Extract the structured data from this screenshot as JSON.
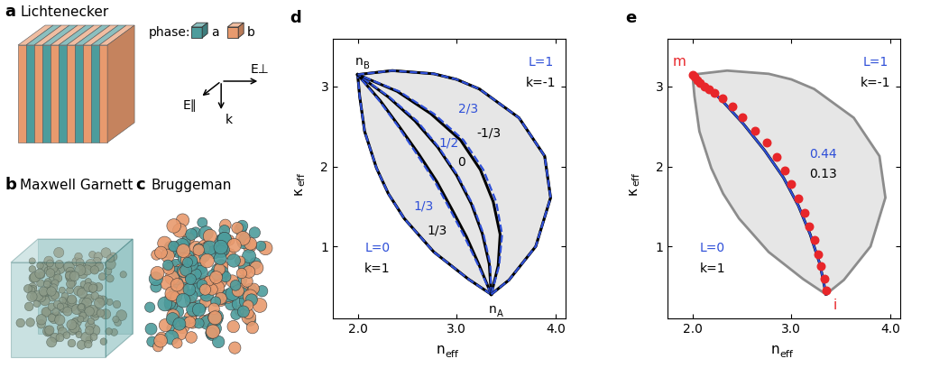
{
  "diagrams": {
    "a": {
      "label": "a",
      "title": "Lichtenecker",
      "legend": {
        "title": "phase:",
        "items": [
          {
            "label": "a",
            "color": "#4d9c9c"
          },
          {
            "label": "b",
            "color": "#e89a6e"
          }
        ]
      },
      "vectors": [
        "E∥",
        "E⊥",
        "k"
      ]
    },
    "b": {
      "label": "b",
      "title": "Maxwell Garnett"
    },
    "c": {
      "label": "c",
      "title": "Bruggeman"
    }
  },
  "chart_data": [
    {
      "type": "line",
      "panel": "d",
      "xlabel": {
        "text": "n",
        "subscript": "eff"
      },
      "ylabel": {
        "text": "κ",
        "subscript": "eff"
      },
      "xlim": [
        1.75,
        4.1
      ],
      "xticks": [
        {
          "value": 2,
          "label": "2.0"
        },
        {
          "value": 3,
          "label": "3.0"
        },
        {
          "value": 4,
          "label": "4.0"
        }
      ],
      "ylim": [
        0.1,
        3.6
      ],
      "yticks": [
        1,
        2,
        3
      ],
      "region": {
        "color": "#e6e6e6",
        "x": [
          3.35,
          3.12,
          2.77,
          2.47,
          2.31,
          2.19,
          2.07,
          2.02,
          2.0,
          2.35,
          2.77,
          3.0,
          3.23,
          3.63,
          3.89,
          3.95,
          3.8,
          3.53,
          3.35
        ],
        "y": [
          0.4,
          0.59,
          0.93,
          1.35,
          1.66,
          1.98,
          2.44,
          2.88,
          3.15,
          3.2,
          3.16,
          3.09,
          2.97,
          2.61,
          2.13,
          1.61,
          1.0,
          0.58,
          0.4
        ]
      },
      "points": [
        {
          "label": {
            "text": "n",
            "subscript": "B"
          },
          "x": 2.0,
          "y": 3.15,
          "color": "#000000"
        },
        {
          "label": {
            "text": "n",
            "subscript": "A"
          },
          "x": 3.35,
          "y": 0.4,
          "color": "#000000"
        }
      ],
      "series": [
        {
          "label": "k=1",
          "color": "#000000",
          "line_style": "solid",
          "x": [
            3.35,
            3.12,
            2.77,
            2.47,
            2.31,
            2.19,
            2.07,
            2.02,
            2.0
          ],
          "y": [
            0.4,
            0.59,
            0.93,
            1.35,
            1.66,
            1.98,
            2.44,
            2.88,
            3.15
          ]
        },
        {
          "label": "L=0",
          "color": "#2e4fd8",
          "line_style": "dashed",
          "x": [
            3.35,
            3.12,
            2.77,
            2.47,
            2.31,
            2.19,
            2.07,
            2.02,
            2.0
          ],
          "y": [
            0.4,
            0.59,
            0.93,
            1.35,
            1.66,
            1.98,
            2.44,
            2.88,
            3.15
          ]
        },
        {
          "label": "1/3",
          "color": "#000000",
          "line_style": "solid",
          "x": [
            3.35,
            3.23,
            3.1,
            2.95,
            2.8,
            2.62,
            2.42,
            2.23,
            2.0
          ],
          "y": [
            0.4,
            0.76,
            1.12,
            1.47,
            1.81,
            2.15,
            2.5,
            2.82,
            3.15
          ]
        },
        {
          "label": "1/3",
          "color": "#2e4fd8",
          "line_style": "dashed",
          "x": [
            3.35,
            3.22,
            3.08,
            2.93,
            2.78,
            2.6,
            2.41,
            2.22,
            2.0
          ],
          "y": [
            0.4,
            0.76,
            1.12,
            1.47,
            1.81,
            2.15,
            2.5,
            2.82,
            3.15
          ]
        },
        {
          "label": "0",
          "color": "#000000",
          "line_style": "solid",
          "x": [
            3.35,
            3.33,
            3.26,
            3.15,
            3.0,
            2.81,
            2.58,
            2.31,
            2.0
          ],
          "y": [
            0.4,
            0.78,
            1.16,
            1.53,
            1.89,
            2.24,
            2.57,
            2.87,
            3.15
          ]
        },
        {
          "label": "1/2",
          "color": "#2e4fd8",
          "line_style": "dashed",
          "x": [
            3.35,
            3.34,
            3.27,
            3.16,
            3.01,
            2.82,
            2.6,
            2.32,
            2.0
          ],
          "y": [
            0.4,
            0.78,
            1.16,
            1.53,
            1.89,
            2.24,
            2.57,
            2.87,
            3.15
          ]
        },
        {
          "label": "-1/3",
          "color": "#000000",
          "line_style": "solid",
          "x": [
            3.35,
            3.42,
            3.44,
            3.37,
            3.24,
            3.04,
            2.74,
            2.4,
            2.0
          ],
          "y": [
            0.4,
            0.76,
            1.15,
            1.56,
            1.96,
            2.33,
            2.66,
            2.94,
            3.15
          ]
        },
        {
          "label": "2/3",
          "color": "#2e4fd8",
          "line_style": "dashed",
          "x": [
            3.35,
            3.43,
            3.46,
            3.4,
            3.27,
            3.07,
            2.77,
            2.42,
            2.0
          ],
          "y": [
            0.4,
            0.76,
            1.15,
            1.56,
            1.96,
            2.33,
            2.66,
            2.94,
            3.15
          ]
        },
        {
          "label": "k=-1",
          "color": "#000000",
          "line_style": "solid",
          "x": [
            3.35,
            3.53,
            3.8,
            3.95,
            3.89,
            3.63,
            3.23,
            3.0,
            2.77,
            2.35,
            2.0
          ],
          "y": [
            0.4,
            0.58,
            1.0,
            1.61,
            2.13,
            2.61,
            2.97,
            3.09,
            3.16,
            3.2,
            3.15
          ]
        },
        {
          "label": "L=1",
          "color": "#2e4fd8",
          "line_style": "dashed",
          "x": [
            3.35,
            3.53,
            3.8,
            3.95,
            3.89,
            3.63,
            3.23,
            3.0,
            2.77,
            2.35,
            2.0
          ],
          "y": [
            0.4,
            0.58,
            1.0,
            1.61,
            2.13,
            2.61,
            2.97,
            3.09,
            3.16,
            3.2,
            3.15
          ]
        }
      ]
    },
    {
      "type": "line",
      "panel": "e",
      "xlabel": {
        "text": "n",
        "subscript": "eff"
      },
      "ylabel": {
        "text": "κ",
        "subscript": "eff"
      },
      "xlim": [
        1.75,
        4.1
      ],
      "xticks": [
        {
          "value": 2,
          "label": "2.0"
        },
        {
          "value": 3,
          "label": "3.0"
        },
        {
          "value": 4,
          "label": "4.0"
        }
      ],
      "ylim": [
        0.1,
        3.6
      ],
      "yticks": [
        1,
        2,
        3
      ],
      "region": {
        "color": "#e6e6e6",
        "x": [
          3.35,
          3.12,
          2.77,
          2.47,
          2.31,
          2.19,
          2.07,
          2.02,
          2.0,
          2.35,
          2.77,
          3.0,
          3.23,
          3.63,
          3.89,
          3.95,
          3.8,
          3.53,
          3.35
        ],
        "y": [
          0.4,
          0.59,
          0.93,
          1.35,
          1.66,
          1.98,
          2.44,
          2.88,
          3.15,
          3.2,
          3.16,
          3.09,
          2.97,
          2.61,
          2.13,
          1.61,
          1.0,
          0.58,
          0.4
        ]
      },
      "annotations": [
        {
          "text": "L=1",
          "color": "#2e4fd8"
        },
        {
          "text": "k=-1",
          "color": "#000000"
        },
        {
          "text": "L=0",
          "color": "#2e4fd8"
        },
        {
          "text": "k=1",
          "color": "#000000"
        }
      ],
      "points": [
        {
          "label": "m",
          "x": 2.0,
          "y": 3.15,
          "color": "#e8262a"
        },
        {
          "label": "i",
          "x": 3.35,
          "y": 0.4,
          "color": "#e8262a"
        }
      ],
      "series": [
        {
          "label": "0.13",
          "color": "#000000",
          "line_style": "solid",
          "x": [
            3.35,
            3.29,
            3.19,
            3.07,
            2.92,
            2.73,
            2.51,
            2.28,
            2.0
          ],
          "y": [
            0.4,
            0.77,
            1.15,
            1.51,
            1.86,
            2.2,
            2.54,
            2.85,
            3.15
          ]
        },
        {
          "type": "scatter",
          "color": "#e8262a",
          "marker": "o",
          "x": [
            2.0,
            2.02,
            2.05,
            2.08,
            2.12,
            2.17,
            2.22,
            2.3,
            2.4,
            2.5,
            2.63,
            2.75,
            2.85,
            2.93,
            3.0,
            3.07,
            3.13,
            3.18,
            3.23,
            3.27,
            3.3,
            3.33,
            3.35
          ],
          "y": [
            3.15,
            3.12,
            3.08,
            3.05,
            3.0,
            2.97,
            2.92,
            2.85,
            2.75,
            2.62,
            2.45,
            2.3,
            2.12,
            1.95,
            1.78,
            1.6,
            1.42,
            1.25,
            1.08,
            0.9,
            0.75,
            0.6,
            0.45
          ]
        },
        {
          "label": "0.44",
          "color": "#2e4fd8",
          "line_style": "solid",
          "x": [
            3.35,
            3.29,
            3.19,
            3.07,
            2.92,
            2.73,
            2.51,
            2.28,
            2.0
          ],
          "y": [
            0.4,
            0.77,
            1.15,
            1.51,
            1.86,
            2.2,
            2.54,
            2.85,
            3.15
          ]
        }
      ]
    }
  ]
}
